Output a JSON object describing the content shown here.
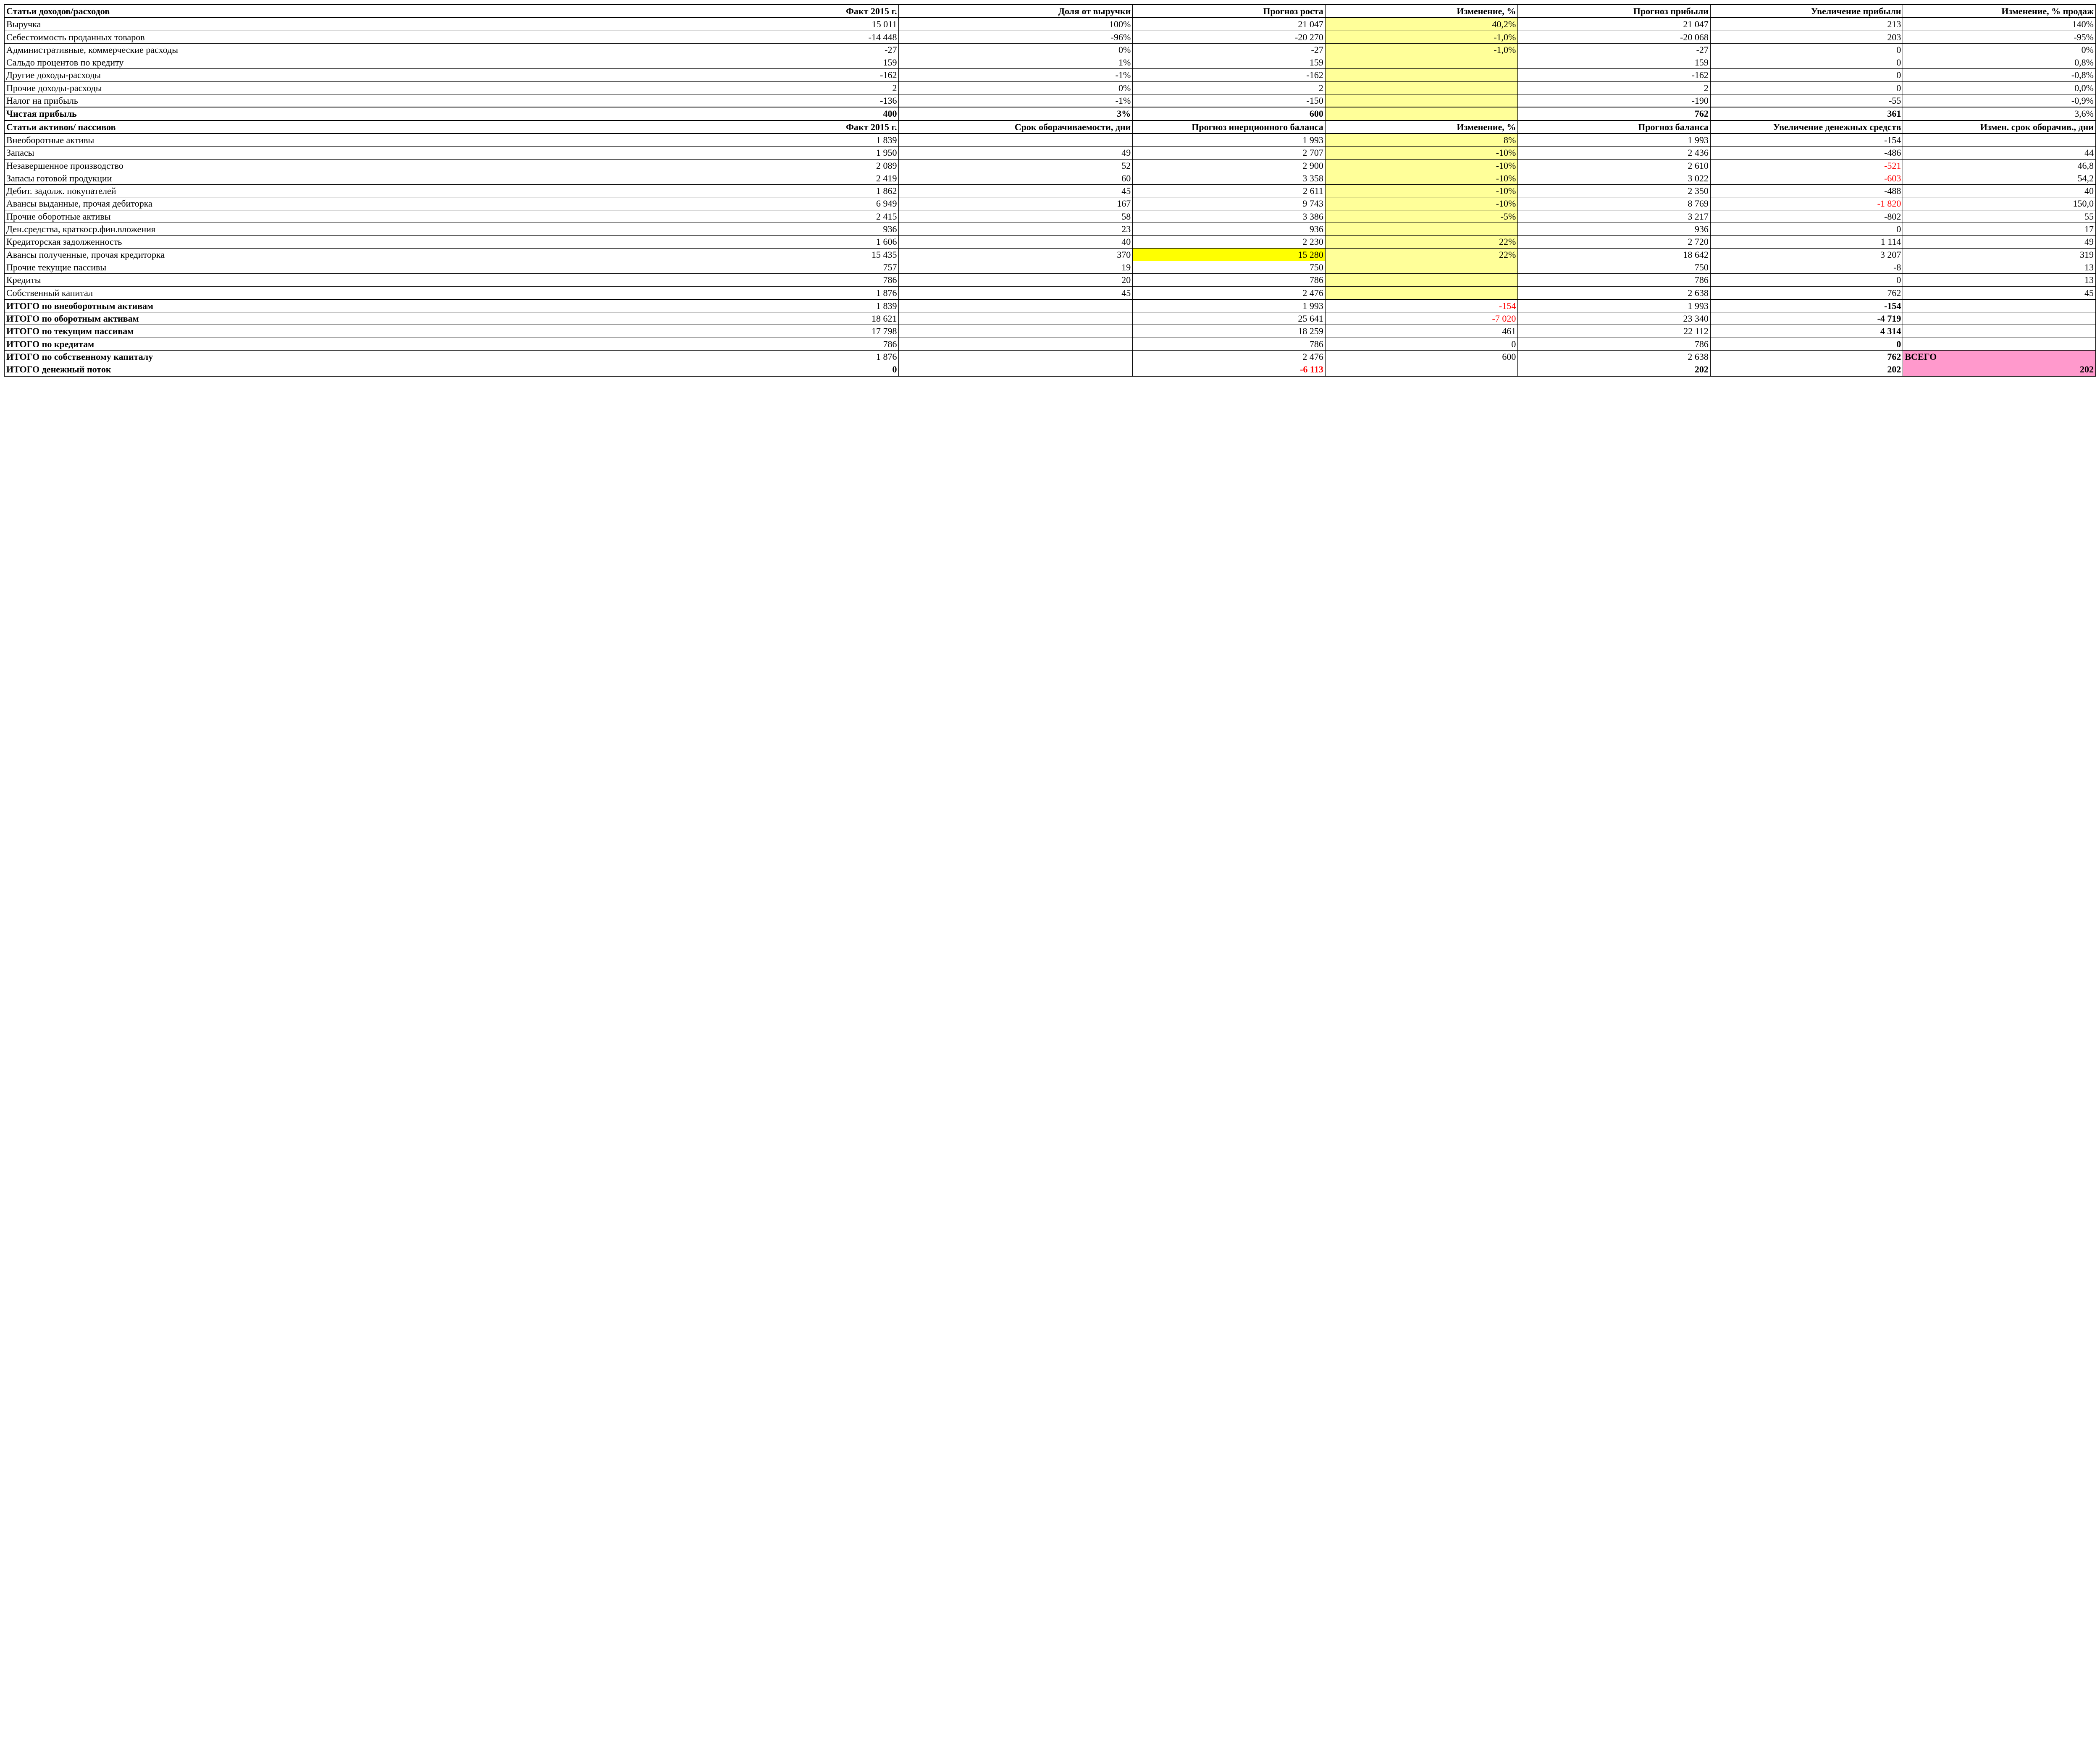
{
  "colors": {
    "background": "#ffffff",
    "border": "#000000",
    "text": "#000000",
    "neg": "#ff0000",
    "hl_light": "#ffff99",
    "hl_yellow": "#ffff00",
    "hl_pink": "#ff99cc"
  },
  "typography": {
    "font_family": "Times New Roman",
    "base_pt": 16,
    "header_weight": "bold"
  },
  "table": {
    "type": "table",
    "column_widths_pct": [
      32,
      11.33,
      11.33,
      9.33,
      9.33,
      9.33,
      9.33,
      9.33
    ],
    "column_align": [
      "left",
      "right",
      "right",
      "right",
      "right",
      "right",
      "right",
      "right"
    ],
    "header1": [
      "Статьи доходов/расходов",
      "Факт 2015 г.",
      "Доля от выручки",
      "Прогноз роста",
      "Изменение, %",
      "Прогноз прибыли",
      "Увеличение прибыли",
      "Изменение, % продаж"
    ],
    "section1_rows": [
      {
        "cells": [
          "Выручка",
          "15 011",
          "100%",
          "21 047",
          "40,2%",
          "21 047",
          "213",
          "140%"
        ],
        "hl": {
          "4": "light"
        }
      },
      {
        "cells": [
          "Себестоимость проданных товаров",
          "-14 448",
          "-96%",
          "-20 270",
          "-1,0%",
          "-20 068",
          "203",
          "-95%"
        ],
        "hl": {
          "4": "light"
        }
      },
      {
        "cells": [
          "Административные, коммерческие расходы",
          "-27",
          "0%",
          "-27",
          "-1,0%",
          "-27",
          "0",
          "0%"
        ],
        "hl": {
          "4": "light"
        }
      },
      {
        "cells": [
          "Сальдо процентов по кредиту",
          "159",
          "1%",
          "159",
          "",
          "159",
          "0",
          "0,8%"
        ],
        "hl": {
          "4": "light"
        }
      },
      {
        "cells": [
          "Другие доходы-расходы",
          "-162",
          "-1%",
          "-162",
          "",
          "-162",
          "0",
          "-0,8%"
        ],
        "hl": {
          "4": "light"
        }
      },
      {
        "cells": [
          "Прочие доходы-расходы",
          "2",
          "0%",
          "2",
          "",
          "2",
          "0",
          "0,0%"
        ],
        "hl": {
          "4": "light"
        }
      },
      {
        "cells": [
          "Налог на прибыль",
          "-136",
          "-1%",
          "-150",
          "",
          "-190",
          "-55",
          "-0,9%"
        ],
        "hl": {
          "4": "light"
        }
      }
    ],
    "section1_total": {
      "cells": [
        "Чистая прибыль",
        "400",
        "3%",
        "600",
        "",
        "762",
        "361",
        "3,6%"
      ],
      "bold_cols": [
        0,
        1,
        2,
        3,
        5,
        6
      ],
      "hl": {
        "4": "light"
      }
    },
    "header2": [
      "Статьи активов/ пассивов",
      "Факт 2015 г.",
      "Срок оборачиваемости, дни",
      "Прогноз инерционного баланса",
      "Изменение, %",
      "Прогноз баланса",
      "Увеличение денежных средств",
      "Измен. срок оборачив., дни"
    ],
    "section2_rows": [
      {
        "cells": [
          "Внеоборотные активы",
          "1 839",
          "",
          "1 993",
          "8%",
          "1 993",
          "-154",
          ""
        ],
        "hl": {
          "4": "light"
        }
      },
      {
        "cells": [
          "Запасы",
          "1 950",
          "49",
          "2 707",
          "-10%",
          "2 436",
          "-486",
          "44"
        ],
        "hl": {
          "4": "light"
        }
      },
      {
        "cells": [
          "Незавершенное производство",
          "2 089",
          "52",
          "2 900",
          "-10%",
          "2 610",
          "-521",
          "46,8"
        ],
        "hl": {
          "4": "light"
        },
        "neg": [
          6
        ]
      },
      {
        "cells": [
          "Запасы готовой продукции",
          "2 419",
          "60",
          "3 358",
          "-10%",
          "3 022",
          "-603",
          "54,2"
        ],
        "hl": {
          "4": "light"
        },
        "neg": [
          6
        ]
      },
      {
        "cells": [
          "Дебит. задолж. покупателей",
          "1 862",
          "45",
          "2 611",
          "-10%",
          "2 350",
          "-488",
          "40"
        ],
        "hl": {
          "4": "light"
        }
      },
      {
        "cells": [
          "Авансы выданные, прочая дебиторка",
          "6 949",
          "167",
          "9 743",
          "-10%",
          "8 769",
          "-1 820",
          "150,0"
        ],
        "hl": {
          "4": "light"
        },
        "neg": [
          6
        ]
      },
      {
        "cells": [
          "Прочие оборотные активы",
          "2 415",
          "58",
          "3 386",
          "-5%",
          "3 217",
          "-802",
          "55"
        ],
        "hl": {
          "4": "light"
        }
      },
      {
        "cells": [
          "Ден.средства, краткоср.фин.вложения",
          "936",
          "23",
          "936",
          "",
          "936",
          "0",
          "17"
        ],
        "hl": {
          "4": "light"
        }
      },
      {
        "cells": [
          "Кредиторская задолженность",
          "1 606",
          "40",
          "2 230",
          "22%",
          "2 720",
          "1 114",
          "49"
        ],
        "hl": {
          "4": "light"
        }
      },
      {
        "cells": [
          "Авансы полученные, прочая кредиторка",
          "15 435",
          "370",
          "15 280",
          "22%",
          "18 642",
          "3 207",
          "319"
        ],
        "hl": {
          "3": "yellow",
          "4": "light"
        }
      },
      {
        "cells": [
          "Прочие текущие пассивы",
          "757",
          "19",
          "750",
          "",
          "750",
          "-8",
          "13"
        ],
        "hl": {
          "4": "light"
        }
      },
      {
        "cells": [
          "Кредиты",
          "786",
          "20",
          "786",
          "",
          "786",
          "0",
          "13"
        ],
        "hl": {
          "4": "light"
        }
      },
      {
        "cells": [
          "Собственный капитал",
          "1 876",
          "45",
          "2 476",
          "",
          "2 638",
          "762",
          "45"
        ],
        "hl": {
          "4": "light"
        }
      }
    ],
    "section2_totals": [
      {
        "cells": [
          "ИТОГО по внеоборотным активам",
          "1 839",
          "",
          "1 993",
          "-154",
          "1 993",
          "-154",
          ""
        ],
        "bold_cols": [
          0,
          6
        ],
        "neg": [
          4
        ]
      },
      {
        "cells": [
          "ИТОГО по оборотным активам",
          "18 621",
          "",
          "25 641",
          "-7 020",
          "23 340",
          "-4 719",
          ""
        ],
        "bold_cols": [
          0,
          6
        ],
        "neg": [
          4
        ]
      },
      {
        "cells": [
          "ИТОГО по текущим пассивам",
          "17 798",
          "",
          "18 259",
          "461",
          "22 112",
          "4 314",
          ""
        ],
        "bold_cols": [
          0,
          6
        ]
      },
      {
        "cells": [
          "ИТОГО по кредитам",
          "786",
          "",
          "786",
          "0",
          "786",
          "0",
          ""
        ],
        "bold_cols": [
          0,
          6
        ]
      },
      {
        "cells": [
          "ИТОГО по собственному капиталу",
          "1 876",
          "",
          "2 476",
          "600",
          "2 638",
          "762",
          "ВСЕГО"
        ],
        "bold_cols": [
          0,
          6,
          7
        ],
        "hl": {
          "7": "pink"
        },
        "align_override": {
          "7": "left"
        }
      },
      {
        "cells": [
          "ИТОГО денежный поток",
          "0",
          "",
          "-6 113",
          "",
          "202",
          "202",
          "202"
        ],
        "bold_cols": [
          0,
          1,
          3,
          5,
          6,
          7
        ],
        "neg": [
          3
        ],
        "hl": {
          "7": "pink"
        }
      }
    ]
  }
}
